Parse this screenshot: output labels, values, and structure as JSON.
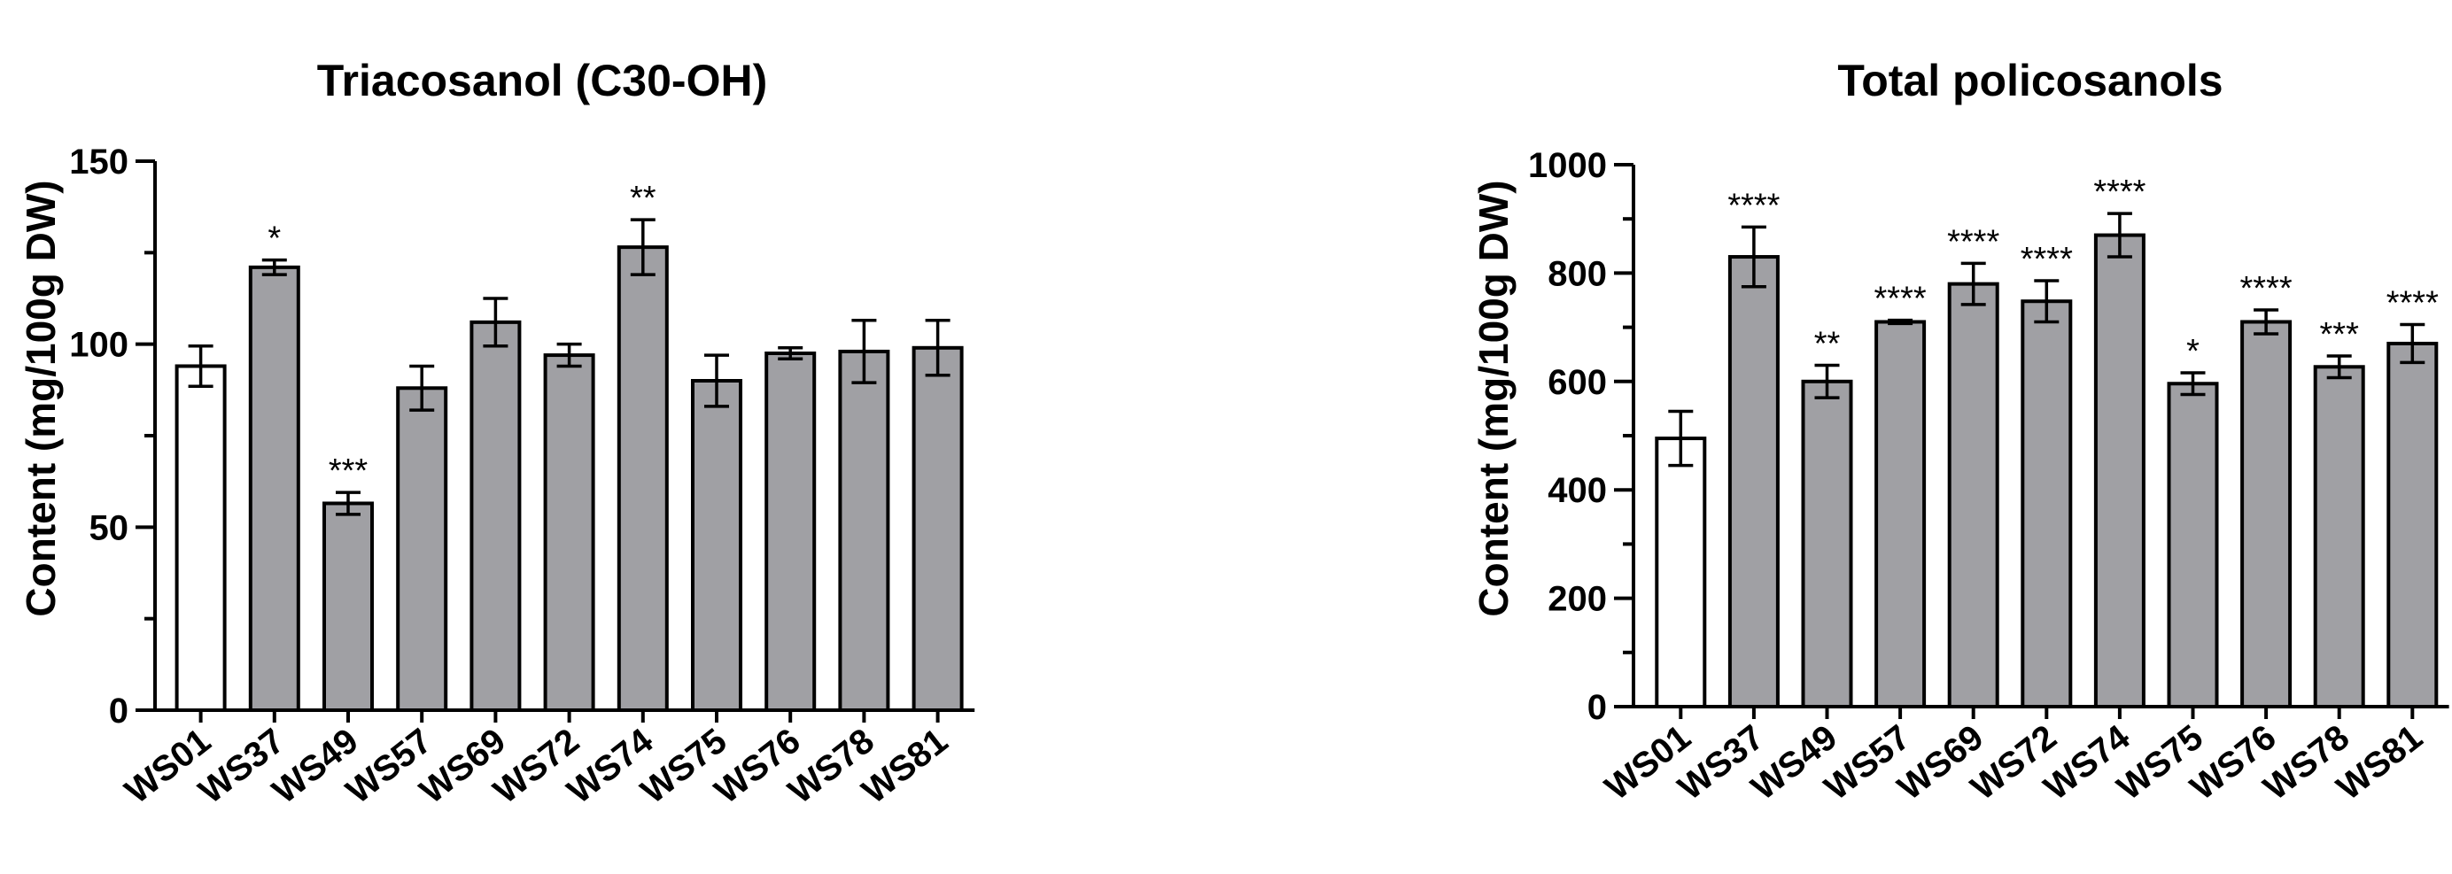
{
  "chart_data": [
    {
      "type": "bar",
      "title": "Triacosanol (C30-OH)",
      "xlabel": "",
      "ylabel": "Content (mg/100g DW)",
      "ylim": [
        0,
        150
      ],
      "yticks": [
        "0",
        "50",
        "100",
        "150"
      ],
      "categories": [
        "WS01",
        "WS37",
        "WS49",
        "WS57",
        "WS69",
        "WS72",
        "WS74",
        "WS75",
        "WS76",
        "WS78",
        "WS81"
      ],
      "values": [
        94,
        121,
        56.5,
        88,
        106,
        97,
        126.5,
        90,
        97.5,
        98,
        99
      ],
      "errors": [
        5.5,
        2,
        3,
        6,
        6.5,
        3,
        7.5,
        7,
        1.5,
        8.5,
        7.5
      ],
      "significance": [
        "",
        "*",
        "***",
        "",
        "",
        "",
        "**",
        "",
        "",
        "",
        ""
      ],
      "colors": [
        "#ffffff",
        "#a0a0a4",
        "#a0a0a4",
        "#a0a0a4",
        "#a0a0a4",
        "#a0a0a4",
        "#a0a0a4",
        "#a0a0a4",
        "#a0a0a4",
        "#a0a0a4",
        "#a0a0a4"
      ],
      "grid": false
    },
    {
      "type": "bar",
      "title": "Total policosanols",
      "xlabel": "",
      "ylabel": "Content (mg/100g DW)",
      "ylim": [
        0,
        1000
      ],
      "yticks": [
        "0",
        "200",
        "400",
        "600",
        "800",
        "1000"
      ],
      "categories": [
        "WS01",
        "WS37",
        "WS49",
        "WS57",
        "WS69",
        "WS72",
        "WS74",
        "WS75",
        "WS76",
        "WS78",
        "WS81"
      ],
      "values": [
        495,
        830,
        600,
        710,
        780,
        748,
        870,
        596,
        710,
        627,
        670
      ],
      "errors": [
        50,
        55,
        30,
        3,
        38,
        38,
        40,
        20,
        22,
        20,
        35
      ],
      "significance": [
        "",
        "****",
        "**",
        "****",
        "****",
        "****",
        "****",
        "*",
        "****",
        "***",
        "****"
      ],
      "colors": [
        "#ffffff",
        "#a0a0a4",
        "#a0a0a4",
        "#a0a0a4",
        "#a0a0a4",
        "#a0a0a4",
        "#a0a0a4",
        "#a0a0a4",
        "#a0a0a4",
        "#a0a0a4",
        "#a0a0a4"
      ],
      "grid": false
    }
  ]
}
